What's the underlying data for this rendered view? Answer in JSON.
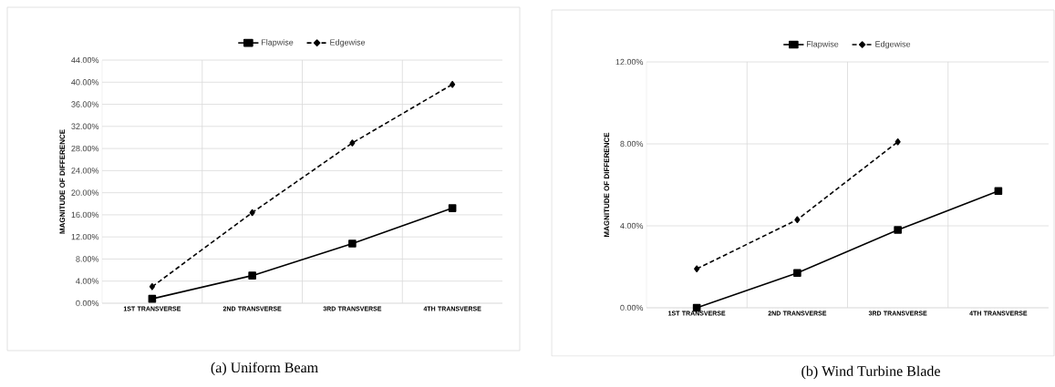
{
  "chart_data": [
    {
      "type": "line",
      "title": "(a)  Uniform Beam",
      "ylabel": "MAGNITUDE OF DIFFERENCE",
      "categories": [
        "1ST TRANSVERSE",
        "2ND TRANSVERSE",
        "3RD TRANSVERSE",
        "4TH TRANSVERSE"
      ],
      "series": [
        {
          "name": "Flapwise",
          "color": "#000000",
          "marker": "square",
          "line_style": "solid",
          "values": [
            0.8,
            5.0,
            10.8,
            17.2
          ]
        },
        {
          "name": "Edgewise",
          "color": "#000000",
          "marker": "diamond",
          "line_style": "dashed",
          "values": [
            3.0,
            16.4,
            29.0,
            39.6
          ]
        }
      ],
      "ylim": [
        0,
        44
      ],
      "yticks": [
        {
          "value": 0,
          "label": "0.00%"
        },
        {
          "value": 4,
          "label": "4.00%"
        },
        {
          "value": 8,
          "label": "8.00%"
        },
        {
          "value": 12,
          "label": "12.00%"
        },
        {
          "value": 16,
          "label": "16.00%"
        },
        {
          "value": 20,
          "label": "20.00%"
        },
        {
          "value": 24,
          "label": "24.00%"
        },
        {
          "value": 28,
          "label": "28.00%"
        },
        {
          "value": 32,
          "label": "32.00%"
        },
        {
          "value": 36,
          "label": "36.00%"
        },
        {
          "value": 40,
          "label": "40.00%"
        },
        {
          "value": 44,
          "label": "44.00%"
        }
      ],
      "grid": true,
      "legend": "top"
    },
    {
      "type": "line",
      "title": "(b)  Wind Turbine Blade",
      "ylabel": "MAGNITUDE OF DIFFERENCE",
      "categories": [
        "1ST TRANSVERSE",
        "2ND TRANSVERSE",
        "3RD TRANSVERSE",
        "4TH TRANSVERSE"
      ],
      "series": [
        {
          "name": "Flapwise",
          "color": "#000000",
          "marker": "square",
          "line_style": "solid",
          "values": [
            0.0,
            1.7,
            3.8,
            5.7
          ]
        },
        {
          "name": "Edgewise",
          "color": "#000000",
          "marker": "diamond",
          "line_style": "dashed",
          "values": [
            1.9,
            4.3,
            8.1,
            null
          ]
        }
      ],
      "ylim": [
        0,
        12
      ],
      "yticks": [
        {
          "value": 0,
          "label": "0.00%"
        },
        {
          "value": 4,
          "label": "4.00%"
        },
        {
          "value": 8,
          "label": "8.00%"
        },
        {
          "value": 12,
          "label": "12.00%"
        }
      ],
      "grid": true,
      "legend": "top"
    }
  ]
}
